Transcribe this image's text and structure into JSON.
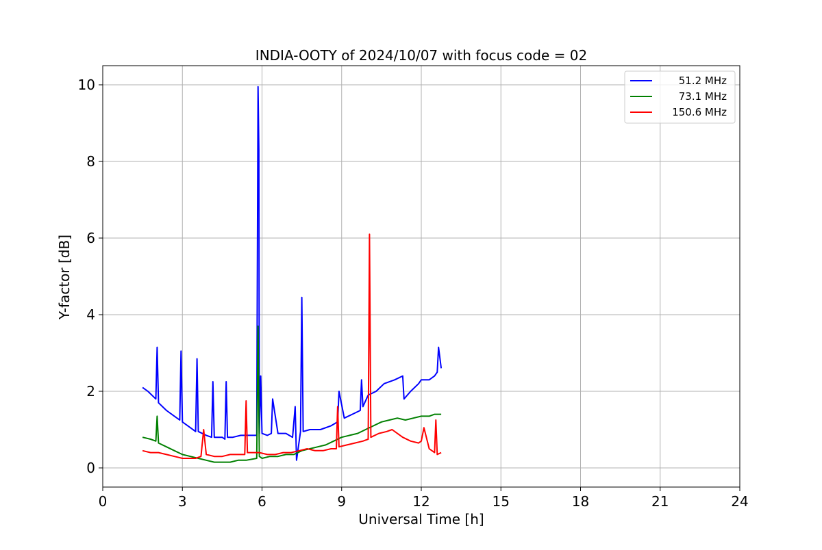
{
  "chart_data": {
    "type": "line",
    "title": "INDIA-OOTY of 2024/10/07 with focus code = 02",
    "xlabel": "Universal Time [h]",
    "ylabel": "Y-factor [dB]",
    "xlim": [
      0,
      24
    ],
    "ylim": [
      -0.5,
      10.5
    ],
    "x_ticks": [
      0,
      3,
      6,
      9,
      12,
      15,
      18,
      21,
      24
    ],
    "y_ticks": [
      0,
      2,
      4,
      6,
      8,
      10
    ],
    "grid": true,
    "legend_position": "top-right",
    "series": [
      {
        "name": "51.2 MHz",
        "color": "#0000ff",
        "x": [
          1.5,
          1.7,
          2.0,
          2.05,
          2.1,
          2.4,
          2.7,
          2.9,
          2.95,
          3.0,
          3.3,
          3.5,
          3.55,
          3.6,
          3.9,
          4.1,
          4.15,
          4.2,
          4.5,
          4.6,
          4.65,
          4.7,
          4.9,
          5.2,
          5.5,
          5.8,
          5.85,
          5.88,
          5.9,
          5.95,
          6.0,
          6.2,
          6.35,
          6.4,
          6.6,
          6.9,
          7.15,
          7.25,
          7.3,
          7.45,
          7.5,
          7.55,
          7.8,
          8.2,
          8.6,
          8.85,
          8.9,
          9.1,
          9.4,
          9.7,
          9.75,
          9.8,
          10.0,
          10.3,
          10.6,
          11.0,
          11.3,
          11.35,
          11.6,
          11.9,
          12.0,
          12.3,
          12.5,
          12.6,
          12.65,
          12.75
        ],
        "y": [
          2.1,
          2.0,
          1.8,
          3.15,
          1.7,
          1.5,
          1.35,
          1.25,
          3.05,
          1.2,
          1.05,
          0.95,
          2.85,
          0.95,
          0.85,
          0.8,
          2.25,
          0.8,
          0.8,
          0.75,
          2.25,
          0.8,
          0.8,
          0.85,
          0.85,
          0.85,
          9.95,
          8.3,
          0.9,
          2.4,
          0.9,
          0.85,
          0.9,
          1.8,
          0.9,
          0.9,
          0.8,
          1.6,
          0.2,
          0.95,
          4.45,
          0.95,
          1.0,
          1.0,
          1.1,
          1.2,
          2.0,
          1.3,
          1.4,
          1.5,
          2.3,
          1.6,
          1.9,
          2.0,
          2.2,
          2.3,
          2.4,
          1.8,
          2.0,
          2.2,
          2.3,
          2.3,
          2.4,
          2.5,
          3.15,
          2.6
        ]
      },
      {
        "name": "73.1 MHz",
        "color": "#008000",
        "x": [
          1.5,
          1.8,
          2.0,
          2.05,
          2.1,
          2.4,
          2.7,
          3.0,
          3.3,
          3.6,
          3.9,
          4.2,
          4.5,
          4.8,
          5.1,
          5.4,
          5.8,
          5.85,
          5.9,
          6.0,
          6.3,
          6.6,
          6.9,
          7.2,
          7.5,
          7.8,
          8.1,
          8.4,
          8.7,
          9.0,
          9.3,
          9.6,
          9.9,
          10.2,
          10.5,
          10.8,
          11.1,
          11.4,
          11.7,
          12.0,
          12.3,
          12.5,
          12.75
        ],
        "y": [
          0.8,
          0.75,
          0.7,
          1.35,
          0.65,
          0.55,
          0.45,
          0.35,
          0.3,
          0.25,
          0.2,
          0.15,
          0.15,
          0.15,
          0.2,
          0.2,
          0.25,
          3.7,
          0.3,
          0.25,
          0.3,
          0.3,
          0.35,
          0.35,
          0.45,
          0.5,
          0.55,
          0.6,
          0.7,
          0.8,
          0.85,
          0.9,
          1.0,
          1.1,
          1.2,
          1.25,
          1.3,
          1.25,
          1.3,
          1.35,
          1.35,
          1.4,
          1.4
        ]
      },
      {
        "name": "150.6 MHz",
        "color": "#ff0000",
        "x": [
          1.5,
          1.8,
          2.1,
          2.4,
          2.7,
          3.0,
          3.3,
          3.5,
          3.7,
          3.8,
          3.9,
          4.2,
          4.5,
          4.8,
          5.1,
          5.35,
          5.4,
          5.45,
          5.6,
          5.9,
          6.2,
          6.5,
          6.8,
          7.1,
          7.4,
          7.7,
          8.0,
          8.3,
          8.6,
          8.8,
          8.85,
          8.9,
          9.2,
          9.5,
          9.8,
          10.0,
          10.05,
          10.1,
          10.4,
          10.7,
          10.9,
          11.1,
          11.3,
          11.6,
          11.9,
          12.0,
          12.1,
          12.3,
          12.5,
          12.55,
          12.6,
          12.75
        ],
        "y": [
          0.45,
          0.4,
          0.4,
          0.35,
          0.3,
          0.25,
          0.25,
          0.25,
          0.3,
          1.0,
          0.35,
          0.3,
          0.3,
          0.35,
          0.35,
          0.35,
          1.75,
          0.4,
          0.4,
          0.4,
          0.35,
          0.35,
          0.4,
          0.4,
          0.45,
          0.5,
          0.45,
          0.45,
          0.5,
          0.5,
          1.6,
          0.55,
          0.6,
          0.65,
          0.7,
          0.75,
          6.1,
          0.8,
          0.9,
          0.95,
          1.0,
          0.9,
          0.8,
          0.7,
          0.65,
          0.7,
          1.05,
          0.5,
          0.4,
          1.25,
          0.35,
          0.4
        ]
      }
    ]
  }
}
